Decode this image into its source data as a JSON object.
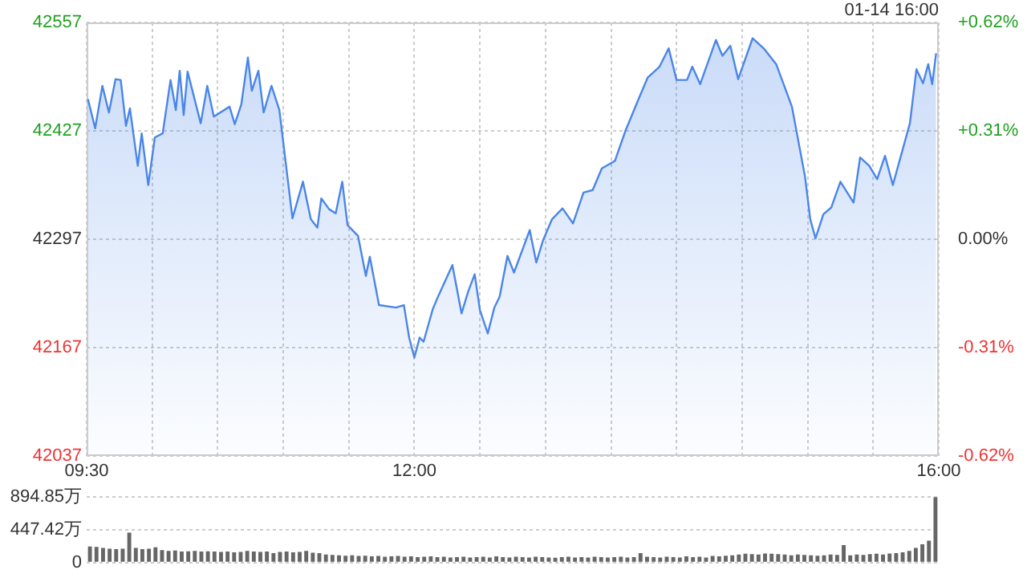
{
  "chart_data": [
    {
      "type": "area",
      "color": "#4a86e8",
      "marker": "none",
      "grid": true,
      "legend": false,
      "annotations": [
        "01-14 16:00"
      ],
      "x": [
        9.51,
        9.565,
        9.62,
        9.67,
        9.72,
        9.76,
        9.8,
        9.83,
        9.89,
        9.92,
        9.97,
        10.02,
        10.08,
        10.14,
        10.18,
        10.21,
        10.24,
        10.27,
        10.37,
        10.42,
        10.47,
        10.59,
        10.63,
        10.68,
        10.73,
        10.76,
        10.81,
        10.85,
        10.91,
        10.97,
        11.07,
        11.15,
        11.21,
        11.26,
        11.29,
        11.35,
        11.4,
        11.45,
        11.49,
        11.57,
        11.63,
        11.66,
        11.73,
        11.86,
        11.92,
        11.96,
        12.0,
        12.04,
        12.07,
        12.14,
        12.18,
        12.29,
        12.36,
        12.41,
        12.46,
        12.5,
        12.56,
        12.61,
        12.65,
        12.71,
        12.76,
        12.88,
        12.93,
        12.98,
        13.05,
        13.13,
        13.21,
        13.29,
        13.36,
        13.43,
        13.53,
        13.61,
        13.71,
        13.78,
        13.87,
        13.94,
        14.0,
        14.08,
        14.12,
        14.18,
        14.3,
        14.35,
        14.41,
        14.47,
        14.58,
        14.67,
        14.76,
        14.88,
        14.98,
        15.02,
        15.06,
        15.12,
        15.18,
        15.25,
        15.35,
        15.4,
        15.47,
        15.53,
        15.59,
        15.65,
        15.78,
        15.83,
        15.88,
        15.92,
        15.95,
        15.98
      ],
      "values": [
        42465,
        42430,
        42481,
        42449,
        42489,
        42488,
        42433,
        42454,
        42385,
        42424,
        42362,
        42419,
        42424,
        42488,
        42452,
        42499,
        42446,
        42498,
        42436,
        42481,
        42444,
        42456,
        42435,
        42459,
        42515,
        42475,
        42499,
        42449,
        42481,
        42452,
        42322,
        42366,
        42321,
        42311,
        42346,
        42333,
        42328,
        42366,
        42314,
        42301,
        42253,
        42276,
        42218,
        42215,
        42218,
        42179,
        42155,
        42179,
        42174,
        42213,
        42228,
        42266,
        42208,
        42234,
        42255,
        42212,
        42184,
        42215,
        42228,
        42277,
        42257,
        42308,
        42269,
        42295,
        42321,
        42334,
        42316,
        42353,
        42356,
        42382,
        42391,
        42427,
        42465,
        42491,
        42504,
        42526,
        42488,
        42488,
        42504,
        42483,
        42536,
        42517,
        42529,
        42489,
        42538,
        42525,
        42507,
        42456,
        42372,
        42321,
        42298,
        42327,
        42335,
        42366,
        42341,
        42395,
        42385,
        42369,
        42397,
        42362,
        42436,
        42501,
        42484,
        42507,
        42483,
        42520
      ],
      "xlim": [
        9.5,
        16
      ],
      "xticks": [
        {
          "value": 9.5,
          "label": "09:30"
        },
        {
          "value": 10,
          "label": null
        },
        {
          "value": 10.5,
          "label": null
        },
        {
          "value": 11,
          "label": null
        },
        {
          "value": 11.5,
          "label": null
        },
        {
          "value": 12,
          "label": "12:00"
        },
        {
          "value": 12.5,
          "label": null
        },
        {
          "value": 13,
          "label": null
        },
        {
          "value": 13.5,
          "label": null
        },
        {
          "value": 14,
          "label": null
        },
        {
          "value": 14.5,
          "label": null
        },
        {
          "value": 15,
          "label": null
        },
        {
          "value": 15.5,
          "label": null
        },
        {
          "value": 16,
          "label": "16:00"
        }
      ],
      "ylim": [
        42037,
        42557
      ],
      "yticks": [
        42037,
        42167,
        42297,
        42427,
        42557
      ],
      "y2lim": [
        -0.62,
        0.62
      ],
      "y2ticks": [
        {
          "value": -0.62,
          "label": "-0.62%"
        },
        {
          "value": -0.31,
          "label": "-0.31%"
        },
        {
          "value": 0,
          "label": "0.00%"
        },
        {
          "value": 0.31,
          "label": "+0.31%"
        },
        {
          "value": 0.62,
          "label": "+0.62%"
        }
      ]
    },
    {
      "type": "bar",
      "color": "#666666",
      "grid": "y",
      "legend": false,
      "tick_labels": "y",
      "categories": [
        null,
        null,
        null,
        null,
        null,
        null,
        null,
        null,
        null,
        null,
        null,
        null,
        null,
        null,
        null,
        null,
        null,
        null,
        null,
        null,
        null,
        null,
        null,
        null,
        null,
        null,
        null,
        null,
        null,
        null,
        null,
        null,
        null,
        null,
        null,
        null,
        null,
        null,
        null,
        null,
        null,
        null,
        null,
        null,
        null,
        null,
        null,
        null,
        null,
        null,
        null,
        null,
        null,
        null,
        null,
        null,
        null,
        null,
        null,
        null,
        null,
        null,
        null,
        null,
        null,
        null,
        null,
        null,
        null,
        null,
        null,
        null,
        null,
        null,
        null,
        null,
        null,
        null,
        null,
        null,
        null,
        null,
        null,
        null,
        null,
        null,
        null,
        null,
        null,
        null,
        null,
        null,
        null,
        null,
        null,
        null,
        null,
        null,
        null,
        null,
        null,
        null,
        null,
        null,
        null,
        null,
        null,
        null,
        null,
        null,
        null,
        null,
        null,
        null,
        null,
        null,
        null,
        null,
        null,
        null,
        null,
        null,
        null,
        null,
        null,
        null,
        null,
        null,
        null,
        null
      ],
      "values": [
        220,
        215,
        200,
        190,
        185,
        190,
        410,
        200,
        185,
        190,
        210,
        170,
        160,
        165,
        150,
        155,
        160,
        150,
        155,
        150,
        145,
        150,
        140,
        145,
        160,
        150,
        145,
        150,
        130,
        145,
        150,
        140,
        145,
        160,
        135,
        130,
        110,
        105,
        100,
        95,
        100,
        90,
        95,
        85,
        90,
        80,
        85,
        90,
        80,
        85,
        75,
        80,
        85,
        75,
        80,
        70,
        75,
        80,
        70,
        75,
        80,
        70,
        85,
        75,
        70,
        80,
        75,
        70,
        80,
        75,
        70,
        65,
        75,
        80,
        70,
        75,
        70,
        80,
        75,
        70,
        75,
        80,
        70,
        75,
        130,
        80,
        75,
        70,
        80,
        75,
        70,
        85,
        75,
        80,
        70,
        90,
        85,
        95,
        100,
        110,
        120,
        115,
        110,
        125,
        120,
        115,
        110,
        100,
        110,
        105,
        100,
        95,
        100,
        110,
        105,
        240,
        100,
        110,
        105,
        115,
        120,
        110,
        125,
        130,
        140,
        160,
        200,
        250,
        300,
        894.85
      ],
      "ylim": [
        0,
        894.85
      ],
      "yticks": [
        0,
        {
          "value": 447.42,
          "label": "447.42万"
        },
        {
          "value": 894.85,
          "label": "894.85万"
        }
      ]
    }
  ]
}
